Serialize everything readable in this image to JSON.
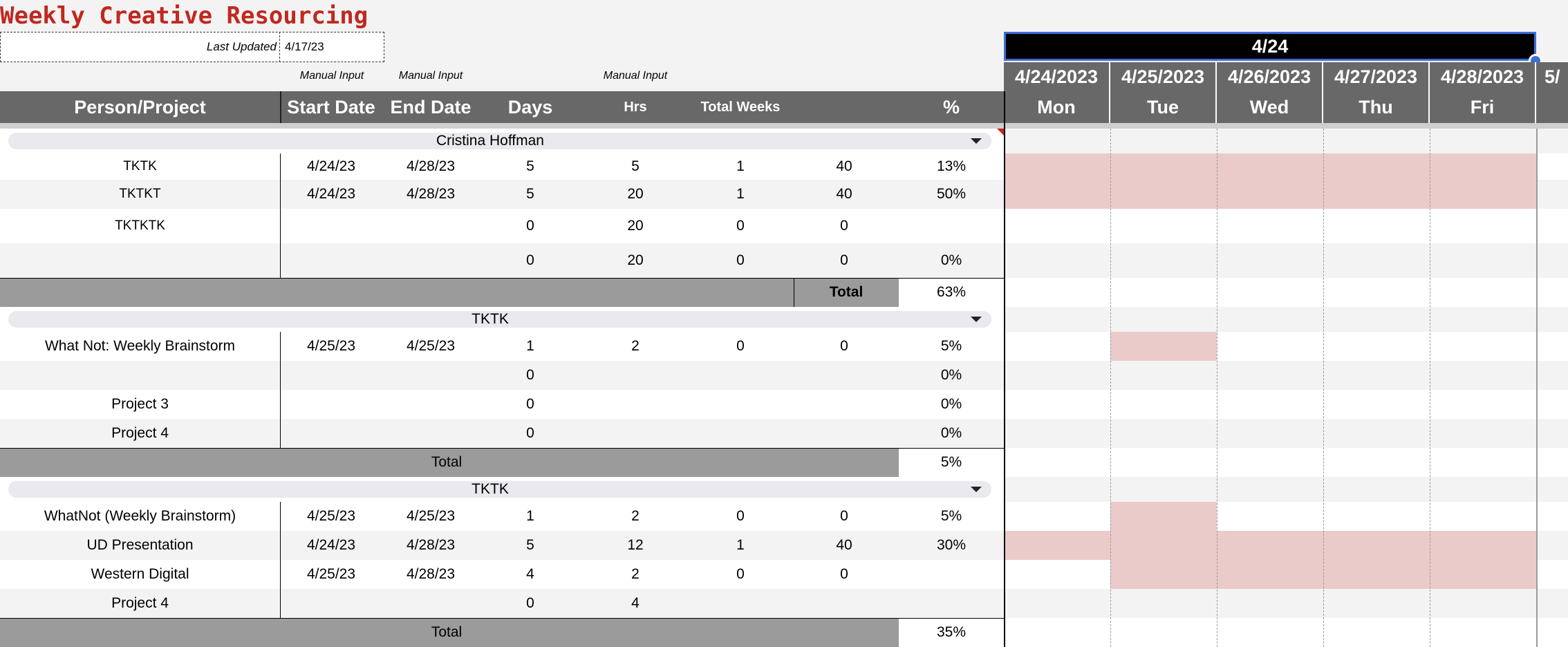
{
  "sheet": {
    "title": "Weekly Creative Resourcing",
    "last_updated_label": "Last Updated",
    "last_updated_value": "4/17/23",
    "manual_input_labels": [
      "Manual Input",
      "Manual Input",
      "Manual Input"
    ],
    "title_color": "#c0281f"
  },
  "headers": {
    "person_project": "Person/Project",
    "start_date": "Start Date",
    "end_date": "End Date",
    "days": "Days",
    "hrs": "Hrs",
    "total_weeks": "Total Weeks",
    "percent": "%"
  },
  "calendar": {
    "week_label": "4/24",
    "dates": [
      "4/24/2023",
      "4/25/2023",
      "4/26/2023",
      "4/27/2023",
      "4/28/2023",
      "5/"
    ],
    "days": [
      "Mon",
      "Tue",
      "Wed",
      "Thu",
      "Fri",
      ""
    ],
    "highlight_color": "#ebcaca",
    "selection_color": "#3b6fd9"
  },
  "groups": [
    {
      "name": "Cristina Hoffman",
      "rows": [
        {
          "project": "TKTK",
          "start": "4/24/23",
          "end": "4/28/23",
          "days": "5",
          "hrs": "5",
          "weeks": "1",
          "hpw": "40",
          "pct": "13%",
          "highlight": [
            0,
            1,
            2,
            3,
            4
          ]
        },
        {
          "project": "TKTKT",
          "start": "4/24/23",
          "end": "4/28/23",
          "days": "5",
          "hrs": "20",
          "weeks": "1",
          "hpw": "40",
          "pct": "50%",
          "highlight": [
            0,
            1,
            2,
            3,
            4
          ]
        },
        {
          "project": "TKTKTK",
          "start": "",
          "end": "",
          "days": "0",
          "hrs": "20",
          "weeks": "0",
          "hpw": "0",
          "pct": "",
          "highlight": []
        },
        {
          "project": "",
          "start": "",
          "end": "",
          "days": "0",
          "hrs": "20",
          "weeks": "0",
          "hpw": "0",
          "pct": "0%",
          "highlight": []
        }
      ],
      "total_label": "Total",
      "total_pct": "63%"
    },
    {
      "name": "TKTK",
      "rows": [
        {
          "project": "What Not: Weekly Brainstorm",
          "start": "4/25/23",
          "end": "4/25/23",
          "days": "1",
          "hrs": "2",
          "weeks": "0",
          "hpw": "0",
          "pct": "5%",
          "highlight": [
            1
          ]
        },
        {
          "project": "",
          "start": "",
          "end": "",
          "days": "0",
          "hrs": "",
          "weeks": "",
          "hpw": "",
          "pct": "0%",
          "highlight": []
        },
        {
          "project": "Project 3",
          "start": "",
          "end": "",
          "days": "0",
          "hrs": "",
          "weeks": "",
          "hpw": "",
          "pct": "0%",
          "highlight": []
        },
        {
          "project": "Project 4",
          "start": "",
          "end": "",
          "days": "0",
          "hrs": "",
          "weeks": "",
          "hpw": "",
          "pct": "0%",
          "highlight": []
        }
      ],
      "total_label": "Total",
      "total_pct": "5%"
    },
    {
      "name": "TKTK",
      "rows": [
        {
          "project": "WhatNot (Weekly Brainstorm)",
          "start": "4/25/23",
          "end": "4/25/23",
          "days": "1",
          "hrs": "2",
          "weeks": "0",
          "hpw": "0",
          "pct": "5%",
          "highlight": [
            1
          ]
        },
        {
          "project": "UD Presentation",
          "start": "4/24/23",
          "end": "4/28/23",
          "days": "5",
          "hrs": "12",
          "weeks": "1",
          "hpw": "40",
          "pct": "30%",
          "highlight": [
            0,
            1,
            2,
            3,
            4
          ]
        },
        {
          "project": "Western Digital",
          "start": "4/25/23",
          "end": "4/28/23",
          "days": "4",
          "hrs": "2",
          "weeks": "0",
          "hpw": "0",
          "pct": "",
          "highlight": [
            1,
            2,
            3,
            4
          ]
        },
        {
          "project": "Project 4",
          "start": "",
          "end": "",
          "days": "0",
          "hrs": "4",
          "weeks": "",
          "hpw": "",
          "pct": "",
          "highlight": []
        }
      ],
      "total_label": "Total",
      "total_pct": "35%"
    }
  ]
}
